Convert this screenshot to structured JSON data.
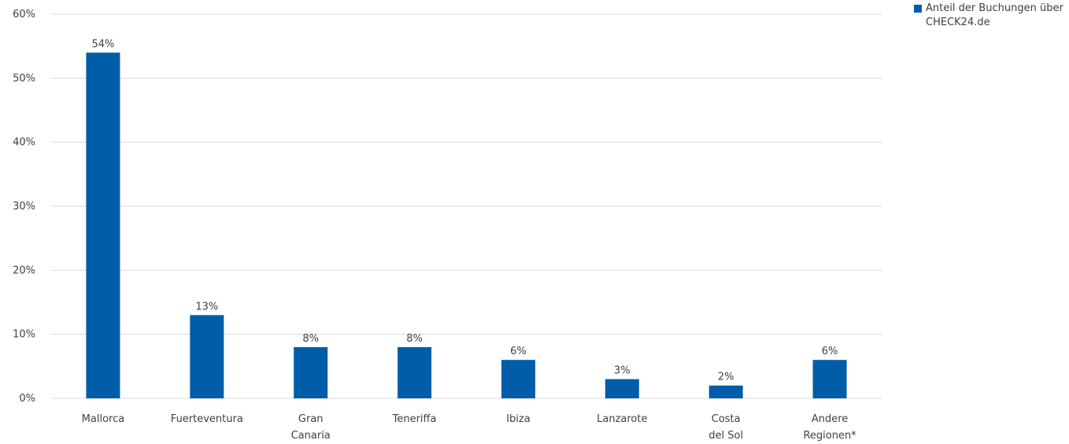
{
  "chart_data": {
    "type": "bar",
    "categories": [
      [
        "Mallorca"
      ],
      [
        "Fuerteventura"
      ],
      [
        "Gran",
        "Canaria"
      ],
      [
        "Teneriffa"
      ],
      [
        "Ibiza"
      ],
      [
        "Lanzarote"
      ],
      [
        "Costa",
        "del Sol"
      ],
      [
        "Andere",
        "Regionen*"
      ]
    ],
    "series": [
      {
        "name": "Anteil der Buchungen über CHECK24.de",
        "values": [
          54,
          13,
          8,
          8,
          6,
          3,
          2,
          6
        ],
        "data_labels": [
          "54%",
          "13%",
          "8%",
          "8%",
          "6%",
          "3%",
          "2%",
          "6%"
        ],
        "color": "#005EA8"
      }
    ],
    "ylim": [
      0,
      60
    ],
    "y_ticks": [
      0,
      10,
      20,
      30,
      40,
      50,
      60
    ],
    "y_tick_labels": [
      "0%",
      "10%",
      "20%",
      "30%",
      "40%",
      "50%",
      "60%"
    ],
    "grid": true,
    "grid_color": "#d9d9d9",
    "legend_position": "top-right",
    "title": "",
    "xlabel": "",
    "ylabel": ""
  }
}
